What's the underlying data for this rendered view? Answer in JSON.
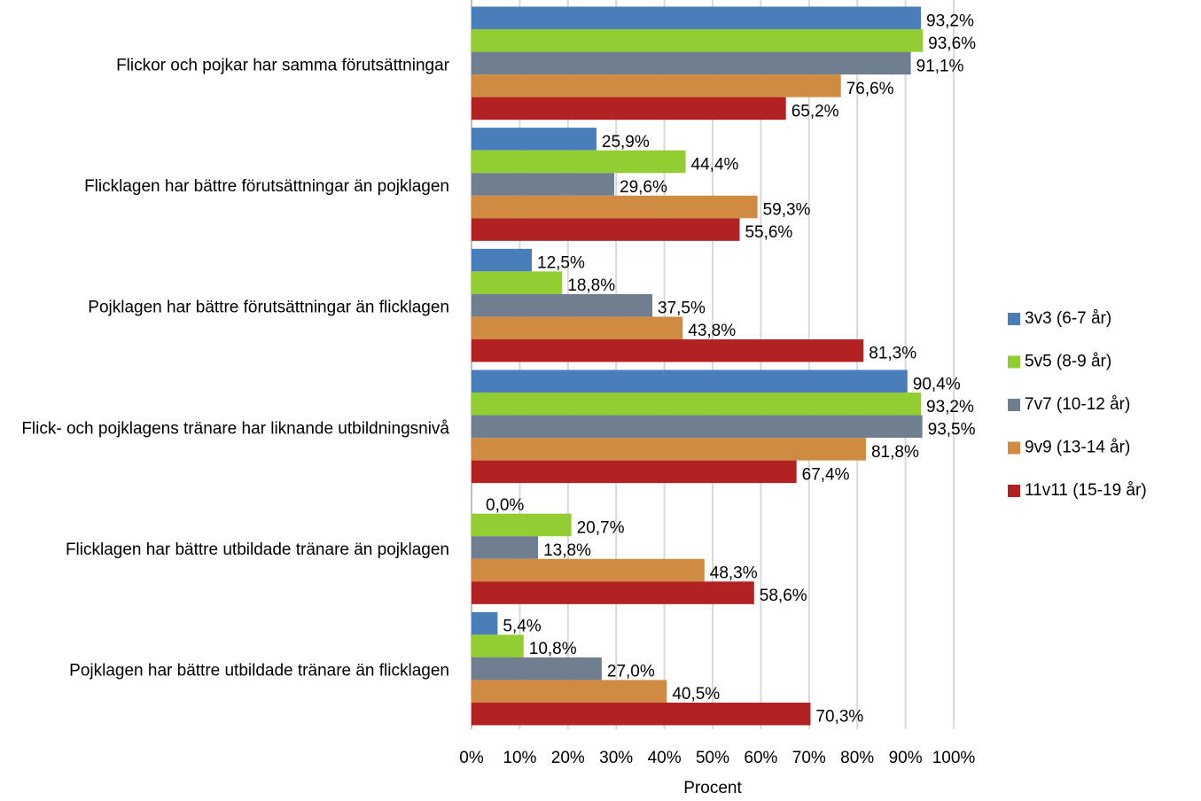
{
  "chart_data": {
    "type": "bar",
    "orientation": "horizontal",
    "categories": [
      "Flickor och pojkar har samma förutsättningar",
      "Flicklagen har bättre förutsättningar än pojklagen",
      "Pojklagen har bättre förutsättningar än flicklagen",
      "Flick- och pojklagens tränare har liknande utbildningsnivå",
      "Flicklagen har bättre utbildade tränare än pojklagen",
      "Pojklagen har bättre utbildade tränare än flicklagen"
    ],
    "series": [
      {
        "name": "3v3 (6-7 år)",
        "color": "#4a7ebb",
        "values": [
          93.2,
          25.9,
          12.5,
          90.4,
          0.0,
          5.4
        ],
        "value_labels": [
          "93,2%",
          "25,9%",
          "12,5%",
          "90,4%",
          "0,0%",
          "5,4%"
        ]
      },
      {
        "name": "5v5 (8-9 år)",
        "color": "#92cd32",
        "values": [
          93.6,
          44.4,
          18.8,
          93.2,
          20.7,
          10.8
        ],
        "value_labels": [
          "93,6%",
          "44,4%",
          "18,8%",
          "93,2%",
          "20,7%",
          "10,8%"
        ]
      },
      {
        "name": "7v7 (10-12 år)",
        "color": "#6f7f8f",
        "values": [
          91.1,
          29.6,
          37.5,
          93.5,
          13.8,
          27.0
        ],
        "value_labels": [
          "91,1%",
          "29,6%",
          "37,5%",
          "93,5%",
          "13,8%",
          "27,0%"
        ]
      },
      {
        "name": "9v9 (13-14 år)",
        "color": "#d08b43",
        "values": [
          76.6,
          59.3,
          43.8,
          81.8,
          48.3,
          40.5
        ],
        "value_labels": [
          "76,6%",
          "59,3%",
          "43,8%",
          "81,8%",
          "48,3%",
          "40,5%"
        ]
      },
      {
        "name": "11v11 (15-19 år)",
        "color": "#b22222",
        "values": [
          65.2,
          55.6,
          81.3,
          67.4,
          58.6,
          70.3
        ],
        "value_labels": [
          "65,2%",
          "55,6%",
          "81,3%",
          "67,4%",
          "58,6%",
          "70,3%"
        ]
      }
    ],
    "xlabel": "Procent",
    "xlim": [
      0,
      100
    ],
    "xticks": [
      {
        "value": 0,
        "label": "0%"
      },
      {
        "value": 10,
        "label": "10%"
      },
      {
        "value": 20,
        "label": "20%"
      },
      {
        "value": 30,
        "label": "30%"
      },
      {
        "value": 40,
        "label": "40%"
      },
      {
        "value": 50,
        "label": "50%"
      },
      {
        "value": 60,
        "label": "60%"
      },
      {
        "value": 70,
        "label": "70%"
      },
      {
        "value": 80,
        "label": "80%"
      },
      {
        "value": 90,
        "label": "90%"
      },
      {
        "value": 100,
        "label": "100%"
      }
    ],
    "grid": true,
    "legend": "right"
  }
}
